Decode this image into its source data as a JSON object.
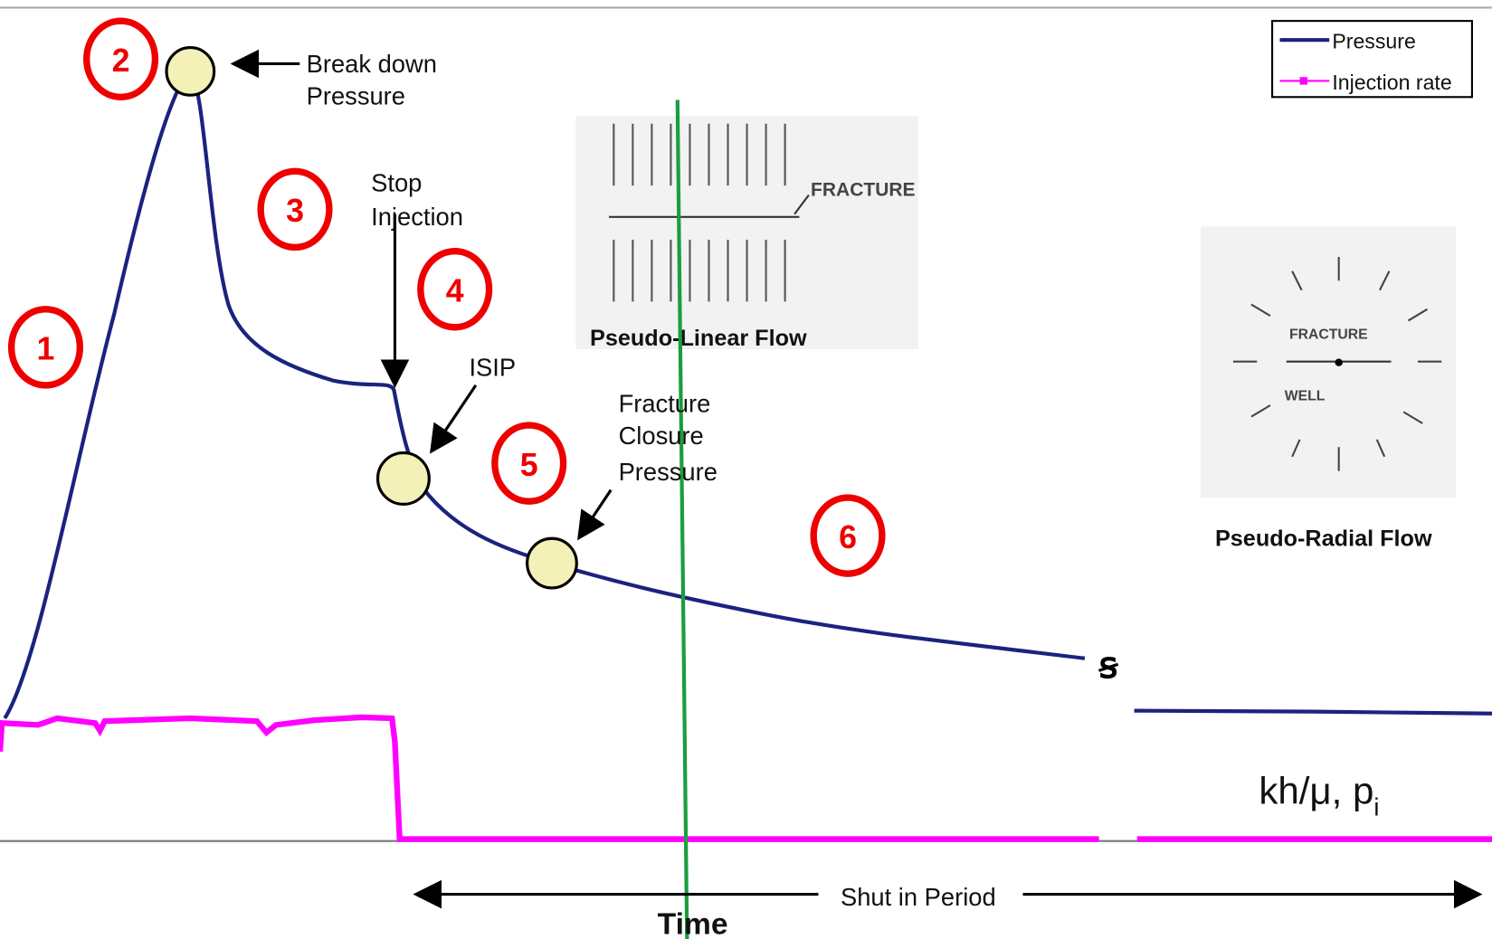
{
  "legend": {
    "items": [
      "Pressure",
      "Injection rate"
    ]
  },
  "stages": [
    "1",
    "2",
    "3",
    "4",
    "5",
    "6"
  ],
  "annotations": {
    "breakdown": [
      "Break down",
      "Pressure"
    ],
    "stop_injection": [
      "Stop",
      "Injection"
    ],
    "isip": "ISIP",
    "closure": [
      "Fracture",
      "Closure",
      "Pressure"
    ]
  },
  "insets": {
    "linear": {
      "label": "FRACTURE",
      "title": "Pseudo-Linear Flow"
    },
    "radial": {
      "fracture": "FRACTURE",
      "well": "WELL",
      "title": "Pseudo-Radial Flow"
    }
  },
  "result": {
    "text": "kh/μ, p",
    "subscript": "i"
  },
  "shut_in": "Shut in Period",
  "x_axis": "Time"
}
